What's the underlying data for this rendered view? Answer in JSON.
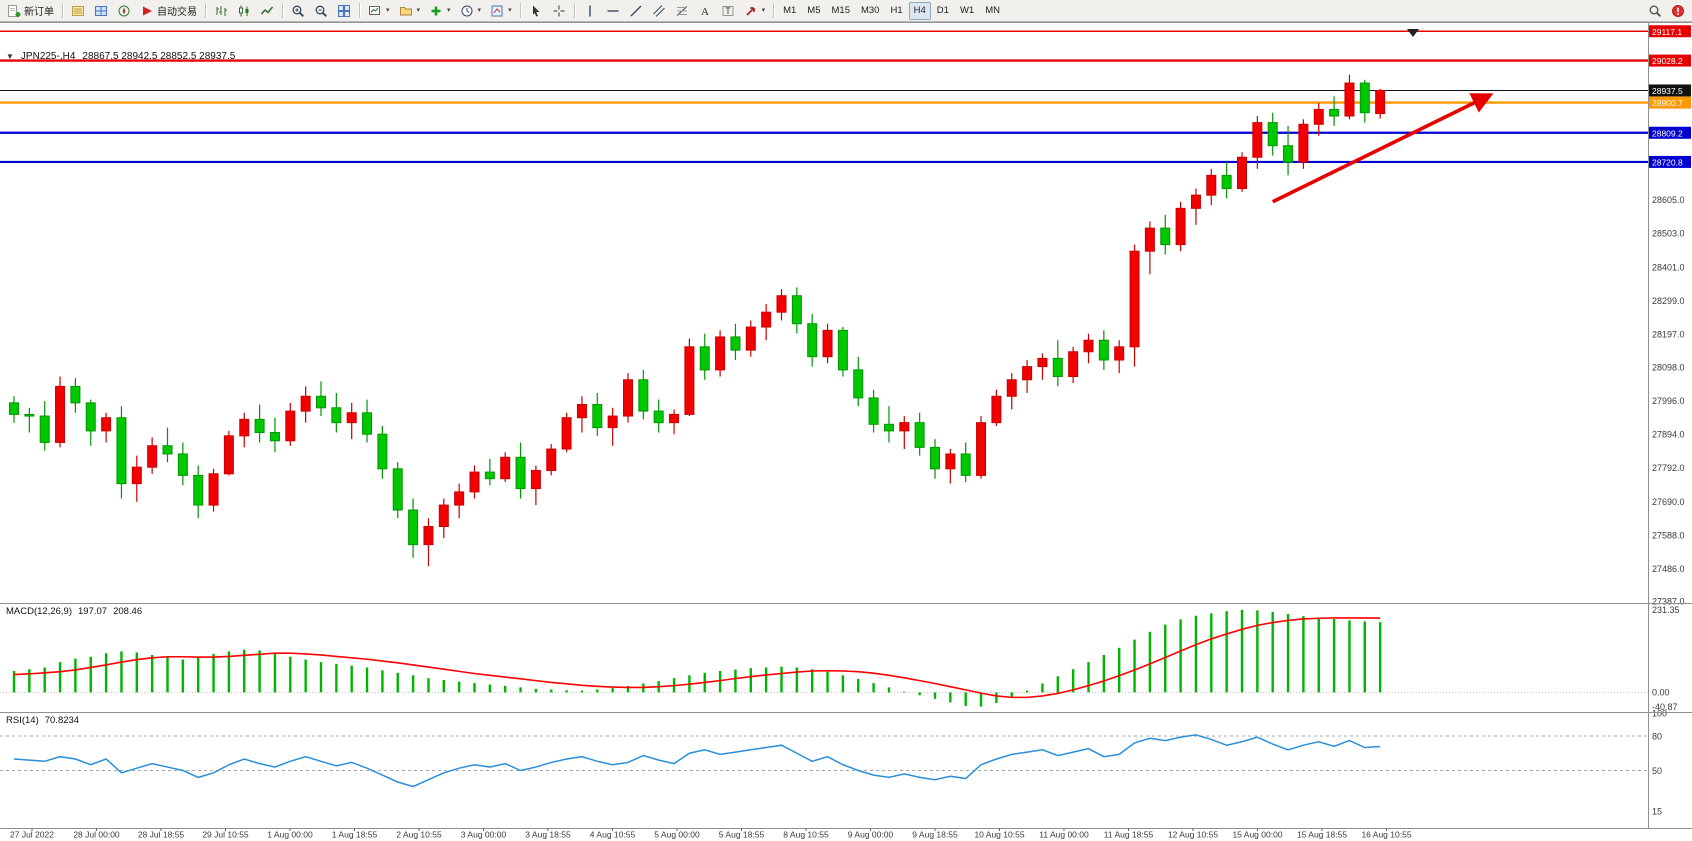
{
  "meta": {
    "title_symbol": "JPN225-,H4",
    "ohlc": "28867.5 28942.5 28852.5 28937.5"
  },
  "toolbar": {
    "new_order_label": "新订单",
    "auto_trading_label": "自动交易",
    "timeframes": [
      "M1",
      "M5",
      "M15",
      "M30",
      "H1",
      "H4",
      "D1",
      "W1",
      "MN"
    ],
    "active_timeframe": "H4"
  },
  "price_axis": {
    "ticks": [
      "28605.0",
      "28503.0",
      "28401.0",
      "28299.0",
      "28197.0",
      "28098.0",
      "27996.0",
      "27894.0",
      "27792.0",
      "27690.0",
      "27588.0",
      "27486.0",
      "27387.0"
    ],
    "line_labels": [
      {
        "text": "29117.1",
        "price": 29117.1,
        "color": "#e60000",
        "width": 1.6
      },
      {
        "text": "29028.2",
        "price": 29028.2,
        "color": "#e60000",
        "width": 2.4
      },
      {
        "text": "28937.5",
        "price": 28937.5,
        "color": "#111111",
        "width": 1
      },
      {
        "text": "28900.7",
        "price": 28900.7,
        "color": "#ff9800",
        "width": 2.4
      },
      {
        "text": "28809.2",
        "price": 28809.2,
        "color": "#0000d0",
        "width": 2.2
      },
      {
        "text": "28720.8",
        "price": 28720.8,
        "color": "#0000d0",
        "width": 2.2
      }
    ]
  },
  "macd_panel": {
    "title": "MACD(12,26,9)",
    "value_main": "197.07",
    "value_signal": "208.46",
    "axis": [
      "231.35",
      "0.00",
      "-40.87"
    ]
  },
  "rsi_panel": {
    "title": "RSI(14)",
    "value": "70.8234",
    "axis": [
      "100",
      "80",
      "50",
      "15"
    ],
    "dashed_levels": [
      80,
      50
    ]
  },
  "chart_data": {
    "type": "candlestick",
    "symbol": "JPN225-",
    "timeframe": "H4",
    "price_range": [
      27383,
      29130
    ],
    "up_color": "#f20000",
    "down_color": "#00c800",
    "x_labels": [
      "27 Jul 2022",
      "28 Jul 00:00",
      "28 Jul 18:55",
      "29 Jul 10:55",
      "1 Aug 00:00",
      "1 Aug 18:55",
      "2 Aug 10:55",
      "3 Aug 00:00",
      "3 Aug 18:55",
      "4 Aug 10:55",
      "5 Aug 00:00",
      "5 Aug 18:55",
      "8 Aug 10:55",
      "9 Aug 00:00",
      "9 Aug 18:55",
      "10 Aug 10:55",
      "11 Aug 00:00",
      "11 Aug 18:55",
      "12 Aug 10:55",
      "15 Aug 00:00",
      "15 Aug 18:55",
      "16 Aug 10:55"
    ],
    "candles": [
      [
        27990,
        28010,
        27930,
        27955
      ],
      [
        27955,
        27975,
        27900,
        27950
      ],
      [
        27950,
        27995,
        27845,
        27870
      ],
      [
        27870,
        28070,
        27855,
        28040
      ],
      [
        28040,
        28065,
        27960,
        27990
      ],
      [
        27990,
        28000,
        27860,
        27905
      ],
      [
        27905,
        27960,
        27870,
        27945
      ],
      [
        27945,
        27980,
        27700,
        27745
      ],
      [
        27745,
        27830,
        27690,
        27795
      ],
      [
        27795,
        27885,
        27775,
        27860
      ],
      [
        27860,
        27915,
        27810,
        27835
      ],
      [
        27835,
        27870,
        27740,
        27770
      ],
      [
        27770,
        27800,
        27640,
        27680
      ],
      [
        27680,
        27790,
        27660,
        27775
      ],
      [
        27775,
        27905,
        27770,
        27890
      ],
      [
        27890,
        27960,
        27855,
        27940
      ],
      [
        27940,
        27985,
        27870,
        27900
      ],
      [
        27900,
        27945,
        27840,
        27875
      ],
      [
        27875,
        27990,
        27860,
        27965
      ],
      [
        27965,
        28040,
        27930,
        28010
      ],
      [
        28010,
        28055,
        27950,
        27975
      ],
      [
        27975,
        28020,
        27900,
        27930
      ],
      [
        27930,
        27990,
        27880,
        27960
      ],
      [
        27960,
        28000,
        27870,
        27895
      ],
      [
        27895,
        27920,
        27760,
        27790
      ],
      [
        27790,
        27810,
        27640,
        27665
      ],
      [
        27665,
        27700,
        27520,
        27560
      ],
      [
        27560,
        27640,
        27495,
        27615
      ],
      [
        27615,
        27700,
        27580,
        27680
      ],
      [
        27680,
        27745,
        27640,
        27720
      ],
      [
        27720,
        27800,
        27700,
        27780
      ],
      [
        27780,
        27820,
        27740,
        27760
      ],
      [
        27760,
        27840,
        27750,
        27825
      ],
      [
        27825,
        27870,
        27700,
        27730
      ],
      [
        27730,
        27800,
        27680,
        27785
      ],
      [
        27785,
        27865,
        27770,
        27850
      ],
      [
        27850,
        27960,
        27840,
        27945
      ],
      [
        27945,
        28010,
        27900,
        27985
      ],
      [
        27985,
        28020,
        27890,
        27915
      ],
      [
        27915,
        27975,
        27860,
        27950
      ],
      [
        27950,
        28080,
        27930,
        28060
      ],
      [
        28060,
        28090,
        27940,
        27965
      ],
      [
        27965,
        28000,
        27900,
        27930
      ],
      [
        27930,
        27970,
        27895,
        27955
      ],
      [
        27955,
        28185,
        27950,
        28160
      ],
      [
        28160,
        28200,
        28060,
        28090
      ],
      [
        28090,
        28210,
        28070,
        28190
      ],
      [
        28190,
        28230,
        28120,
        28150
      ],
      [
        28150,
        28240,
        28130,
        28220
      ],
      [
        28220,
        28290,
        28180,
        28265
      ],
      [
        28265,
        28335,
        28240,
        28315
      ],
      [
        28315,
        28340,
        28200,
        28230
      ],
      [
        28230,
        28260,
        28100,
        28130
      ],
      [
        28130,
        28230,
        28110,
        28210
      ],
      [
        28210,
        28220,
        28070,
        28090
      ],
      [
        28090,
        28130,
        27980,
        28005
      ],
      [
        28005,
        28030,
        27900,
        27925
      ],
      [
        27925,
        27980,
        27870,
        27905
      ],
      [
        27905,
        27950,
        27850,
        27930
      ],
      [
        27930,
        27960,
        27830,
        27855
      ],
      [
        27855,
        27880,
        27760,
        27790
      ],
      [
        27790,
        27850,
        27745,
        27835
      ],
      [
        27835,
        27870,
        27750,
        27770
      ],
      [
        27770,
        27950,
        27760,
        27930
      ],
      [
        27930,
        28030,
        27920,
        28010
      ],
      [
        28010,
        28080,
        27970,
        28060
      ],
      [
        28060,
        28120,
        28020,
        28100
      ],
      [
        28100,
        28140,
        28060,
        28125
      ],
      [
        28125,
        28180,
        28040,
        28070
      ],
      [
        28070,
        28160,
        28050,
        28145
      ],
      [
        28145,
        28200,
        28110,
        28180
      ],
      [
        28180,
        28210,
        28090,
        28120
      ],
      [
        28120,
        28180,
        28080,
        28160
      ],
      [
        28160,
        28470,
        28100,
        28450
      ],
      [
        28450,
        28540,
        28380,
        28520
      ],
      [
        28520,
        28560,
        28440,
        28470
      ],
      [
        28470,
        28600,
        28450,
        28580
      ],
      [
        28580,
        28640,
        28530,
        28620
      ],
      [
        28620,
        28700,
        28590,
        28680
      ],
      [
        28680,
        28720,
        28610,
        28640
      ],
      [
        28640,
        28750,
        28630,
        28735
      ],
      [
        28735,
        28860,
        28700,
        28840
      ],
      [
        28840,
        28870,
        28740,
        28770
      ],
      [
        28770,
        28830,
        28680,
        28720
      ],
      [
        28720,
        28850,
        28700,
        28835
      ],
      [
        28835,
        28900,
        28800,
        28880
      ],
      [
        28880,
        28920,
        28830,
        28860
      ],
      [
        28860,
        28985,
        28850,
        28960
      ],
      [
        28960,
        28970,
        28840,
        28870
      ],
      [
        28867.5,
        28942.5,
        28852.5,
        28937.5
      ]
    ],
    "macd": {
      "range": [
        -55,
        248
      ],
      "histogram": [
        60,
        65,
        70,
        85,
        95,
        100,
        110,
        115,
        112,
        105,
        98,
        92,
        100,
        108,
        115,
        120,
        118,
        110,
        100,
        92,
        85,
        80,
        75,
        70,
        62,
        55,
        48,
        40,
        35,
        30,
        26,
        22,
        18,
        14,
        10,
        8,
        6,
        5,
        8,
        12,
        18,
        25,
        32,
        40,
        48,
        55,
        60,
        64,
        68,
        70,
        72,
        70,
        65,
        58,
        48,
        38,
        26,
        14,
        2,
        -8,
        -18,
        -28,
        -38,
        -40,
        -30,
        -15,
        5,
        25,
        45,
        65,
        85,
        105,
        125,
        148,
        170,
        190,
        205,
        215,
        222,
        228,
        231.35,
        230,
        226,
        220,
        214,
        210,
        206,
        202,
        199,
        197.07
      ],
      "signal": [
        50,
        52,
        55,
        58,
        63,
        70,
        77,
        85,
        92,
        97,
        100,
        100,
        99,
        99,
        101,
        104,
        107,
        110,
        110,
        108,
        105,
        101,
        97,
        93,
        88,
        83,
        77,
        71,
        65,
        59,
        53,
        48,
        43,
        38,
        33,
        28,
        24,
        20,
        17,
        15,
        14,
        14,
        16,
        19,
        23,
        28,
        33,
        39,
        44,
        49,
        53,
        57,
        60,
        61,
        60,
        58,
        54,
        48,
        41,
        33,
        25,
        16,
        7,
        -2,
        -10,
        -14,
        -14,
        -10,
        -3,
        7,
        19,
        32,
        47,
        63,
        80,
        98,
        116,
        134,
        150,
        164,
        177,
        188,
        196,
        202,
        206,
        208,
        209,
        209,
        209,
        208.46
      ]
    },
    "rsi": {
      "range": [
        0,
        100
      ],
      "values": [
        60,
        59,
        58,
        62,
        60,
        55,
        60,
        48,
        52,
        56,
        53,
        50,
        44,
        48,
        55,
        60,
        56,
        53,
        58,
        62,
        58,
        54,
        57,
        52,
        46,
        40,
        36,
        42,
        48,
        52,
        55,
        53,
        56,
        50,
        53,
        57,
        60,
        62,
        58,
        55,
        57,
        63,
        59,
        56,
        65,
        68,
        64,
        66,
        68,
        70,
        72,
        65,
        58,
        62,
        55,
        50,
        46,
        44,
        47,
        44,
        42,
        45,
        43,
        55,
        60,
        64,
        66,
        68,
        63,
        66,
        69,
        62,
        64,
        74,
        78,
        76,
        79,
        81,
        77,
        72,
        75,
        79,
        73,
        68,
        72,
        75,
        71,
        76,
        70,
        70.82
      ]
    },
    "trend_arrow": {
      "from_index": 82,
      "from_price": 28600,
      "to_index": 96,
      "to_price": 28920,
      "color": "#e60000"
    }
  }
}
